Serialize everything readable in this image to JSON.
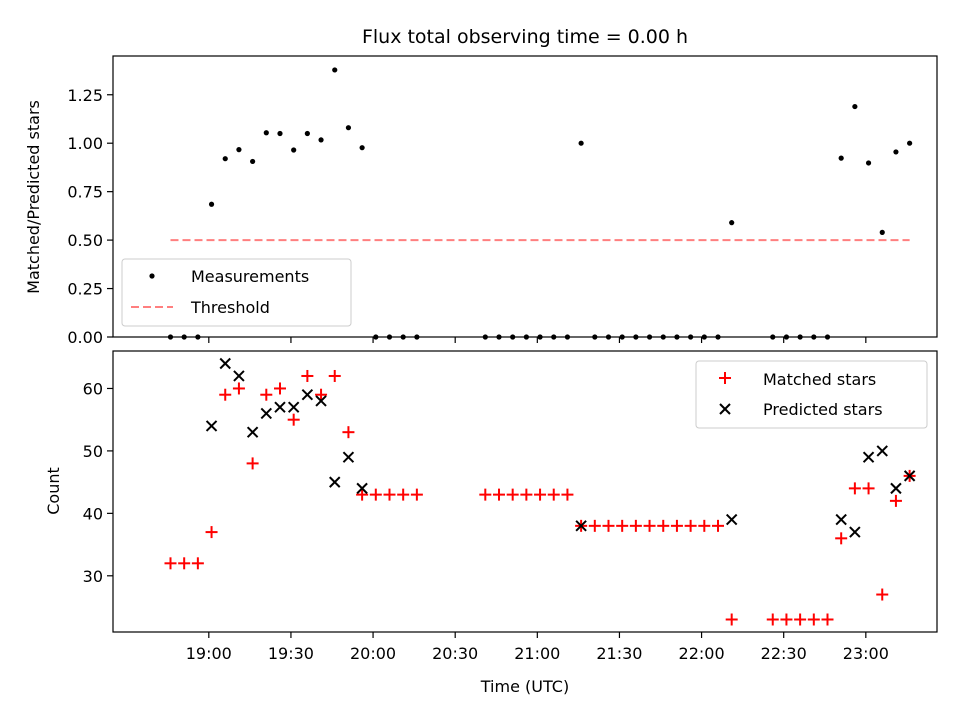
{
  "chart_data": [
    {
      "type": "scatter",
      "title": "Flux total observing time = 0.00 h",
      "xlabel": "",
      "ylabel": "Matched/Predicted stars",
      "ylim": [
        0.0,
        1.45
      ],
      "yticks": [
        0.0,
        0.25,
        0.5,
        0.75,
        1.0,
        1.25
      ],
      "ytick_labels": [
        "0.00",
        "0.25",
        "0.50",
        "0.75",
        "1.00",
        "1.25"
      ],
      "xlim": [
        "18:25",
        "23:26"
      ],
      "xticks": [
        "19:00",
        "19:30",
        "20:00",
        "20:30",
        "21:00",
        "21:30",
        "22:00",
        "22:30",
        "23:00"
      ],
      "legend_position": "lower-left",
      "series": [
        {
          "name": "Measurements",
          "marker": "dot",
          "color": "#000000",
          "points": [
            [
              "18:46",
              0.0
            ],
            [
              "18:51",
              0.0
            ],
            [
              "18:56",
              0.0
            ],
            [
              "19:01",
              0.685
            ],
            [
              "19:06",
              0.92
            ],
            [
              "19:11",
              0.967
            ],
            [
              "19:16",
              0.906
            ],
            [
              "19:21",
              1.054
            ],
            [
              "19:26",
              1.05
            ],
            [
              "19:31",
              0.965
            ],
            [
              "19:36",
              1.05
            ],
            [
              "19:41",
              1.017
            ],
            [
              "19:46",
              1.378
            ],
            [
              "19:51",
              1.08
            ],
            [
              "19:56",
              0.977
            ],
            [
              "20:01",
              0.0
            ],
            [
              "20:06",
              0.0
            ],
            [
              "20:11",
              0.0
            ],
            [
              "20:16",
              0.0
            ],
            [
              "20:41",
              0.0
            ],
            [
              "20:46",
              0.0
            ],
            [
              "20:51",
              0.0
            ],
            [
              "20:56",
              0.0
            ],
            [
              "21:01",
              0.0
            ],
            [
              "21:06",
              0.0
            ],
            [
              "21:11",
              0.0
            ],
            [
              "21:16",
              1.0
            ],
            [
              "21:21",
              0.0
            ],
            [
              "21:26",
              0.0
            ],
            [
              "21:31",
              0.0
            ],
            [
              "21:36",
              0.0
            ],
            [
              "21:41",
              0.0
            ],
            [
              "21:46",
              0.0
            ],
            [
              "21:51",
              0.0
            ],
            [
              "21:56",
              0.0
            ],
            [
              "22:01",
              0.0
            ],
            [
              "22:06",
              0.0
            ],
            [
              "22:11",
              0.59
            ],
            [
              "22:26",
              0.0
            ],
            [
              "22:31",
              0.0
            ],
            [
              "22:36",
              0.0
            ],
            [
              "22:41",
              0.0
            ],
            [
              "22:46",
              0.0
            ],
            [
              "22:51",
              0.923
            ],
            [
              "22:56",
              1.189
            ],
            [
              "23:01",
              0.898
            ],
            [
              "23:06",
              0.54
            ],
            [
              "23:11",
              0.955
            ],
            [
              "23:16",
              1.0
            ]
          ]
        },
        {
          "name": "Threshold",
          "line": "dashed",
          "color": "#ff7f7f",
          "points": [
            [
              "18:46",
              0.5
            ],
            [
              "23:16",
              0.5
            ]
          ]
        }
      ]
    },
    {
      "type": "scatter",
      "title": "",
      "xlabel": "Time (UTC)",
      "ylabel": "Count",
      "ylim": [
        21,
        66
      ],
      "yticks": [
        30,
        40,
        50,
        60
      ],
      "ytick_labels": [
        "30",
        "40",
        "50",
        "60"
      ],
      "xlim": [
        "18:25",
        "23:26"
      ],
      "xticks": [
        "19:00",
        "19:30",
        "20:00",
        "20:30",
        "21:00",
        "21:30",
        "22:00",
        "22:30",
        "23:00"
      ],
      "legend_position": "upper-right",
      "series": [
        {
          "name": "Matched stars",
          "marker": "plus",
          "color": "#ff0000",
          "points": [
            [
              "18:46",
              32
            ],
            [
              "18:51",
              32
            ],
            [
              "18:56",
              32
            ],
            [
              "19:01",
              37
            ],
            [
              "19:06",
              59
            ],
            [
              "19:11",
              60
            ],
            [
              "19:16",
              48
            ],
            [
              "19:21",
              59
            ],
            [
              "19:26",
              60
            ],
            [
              "19:31",
              55
            ],
            [
              "19:36",
              62
            ],
            [
              "19:41",
              59
            ],
            [
              "19:46",
              62
            ],
            [
              "19:51",
              53
            ],
            [
              "19:56",
              43
            ],
            [
              "20:01",
              43
            ],
            [
              "20:06",
              43
            ],
            [
              "20:11",
              43
            ],
            [
              "20:16",
              43
            ],
            [
              "20:41",
              43
            ],
            [
              "20:46",
              43
            ],
            [
              "20:51",
              43
            ],
            [
              "20:56",
              43
            ],
            [
              "21:01",
              43
            ],
            [
              "21:06",
              43
            ],
            [
              "21:11",
              43
            ],
            [
              "21:16",
              38
            ],
            [
              "21:21",
              38
            ],
            [
              "21:26",
              38
            ],
            [
              "21:31",
              38
            ],
            [
              "21:36",
              38
            ],
            [
              "21:41",
              38
            ],
            [
              "21:46",
              38
            ],
            [
              "21:51",
              38
            ],
            [
              "21:56",
              38
            ],
            [
              "22:01",
              38
            ],
            [
              "22:06",
              38
            ],
            [
              "22:11",
              23
            ],
            [
              "22:26",
              23
            ],
            [
              "22:31",
              23
            ],
            [
              "22:36",
              23
            ],
            [
              "22:41",
              23
            ],
            [
              "22:46",
              23
            ],
            [
              "22:51",
              36
            ],
            [
              "22:56",
              44
            ],
            [
              "23:01",
              44
            ],
            [
              "23:06",
              27
            ],
            [
              "23:11",
              42
            ],
            [
              "23:16",
              46
            ]
          ]
        },
        {
          "name": "Predicted stars",
          "marker": "x",
          "color": "#000000",
          "points": [
            [
              "19:01",
              54
            ],
            [
              "19:06",
              64
            ],
            [
              "19:11",
              62
            ],
            [
              "19:16",
              53
            ],
            [
              "19:21",
              56
            ],
            [
              "19:26",
              57
            ],
            [
              "19:31",
              57
            ],
            [
              "19:36",
              59
            ],
            [
              "19:41",
              58
            ],
            [
              "19:46",
              45
            ],
            [
              "19:51",
              49
            ],
            [
              "19:56",
              44
            ],
            [
              "21:16",
              38
            ],
            [
              "22:11",
              39
            ],
            [
              "22:51",
              39
            ],
            [
              "22:56",
              37
            ],
            [
              "23:01",
              49
            ],
            [
              "23:06",
              50
            ],
            [
              "23:11",
              44
            ],
            [
              "23:16",
              46
            ]
          ]
        }
      ]
    }
  ]
}
